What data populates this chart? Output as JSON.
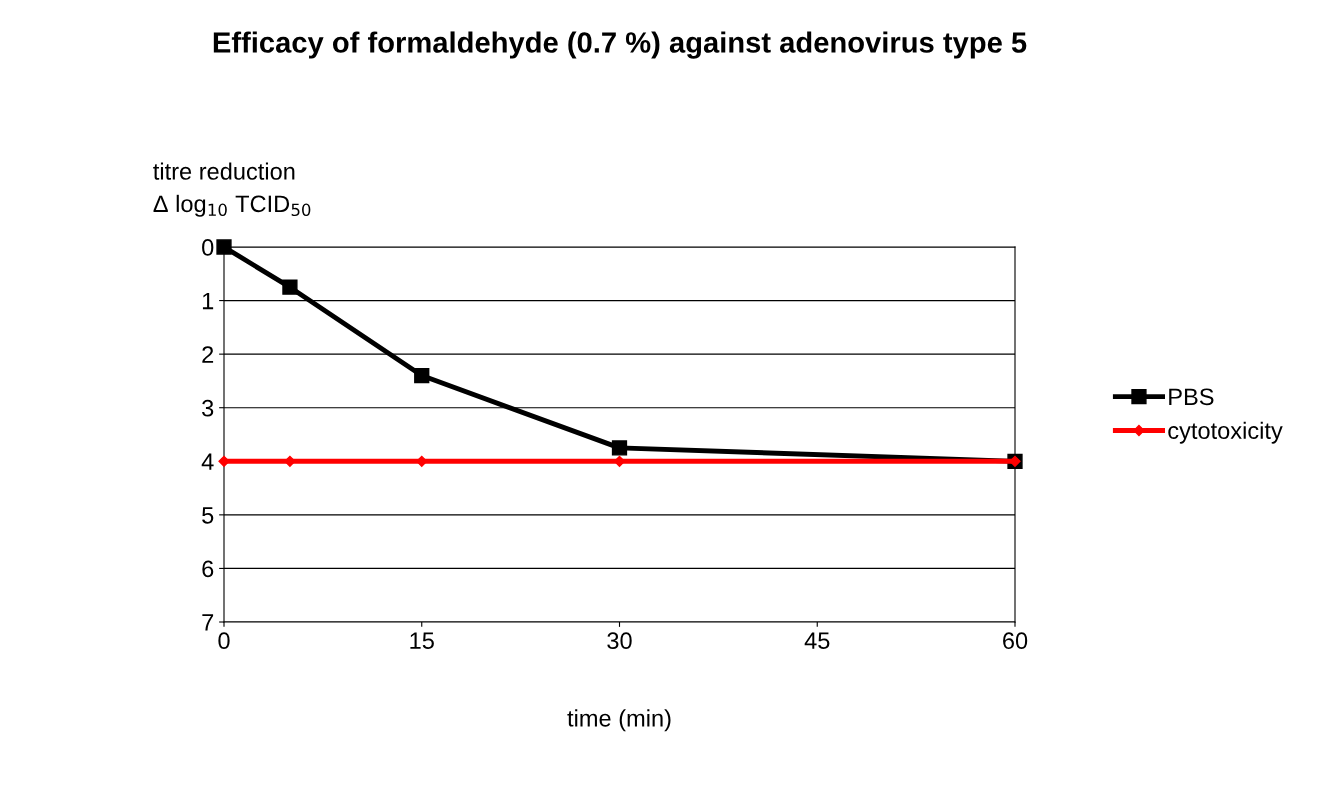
{
  "chart_data": {
    "type": "line",
    "title": "Efficacy of formaldehyde (0.7 %) against adenovirus type 5",
    "xlabel": "time (min)",
    "ylabel": "titre reduction\nΔ log$_{10}$ TCID$_{50}$",
    "x": [
      0,
      5,
      15,
      30,
      60
    ],
    "series": [
      {
        "name": "PBS",
        "color": "#000000",
        "marker": "square",
        "values": [
          0,
          0.75,
          2.4,
          3.75,
          4
        ]
      },
      {
        "name": "cytotoxicity",
        "color": "#ff0000",
        "marker": "diamond",
        "values": [
          4,
          4,
          4,
          4,
          4
        ]
      }
    ],
    "xlim": [
      0,
      60
    ],
    "xticks": [
      0,
      15,
      30,
      45,
      60
    ],
    "ylim": [
      7,
      0
    ],
    "yticks": [
      0,
      1,
      2,
      3,
      4,
      5,
      6,
      7
    ],
    "grid": "y",
    "legend": "right",
    "line_style": "solid"
  }
}
